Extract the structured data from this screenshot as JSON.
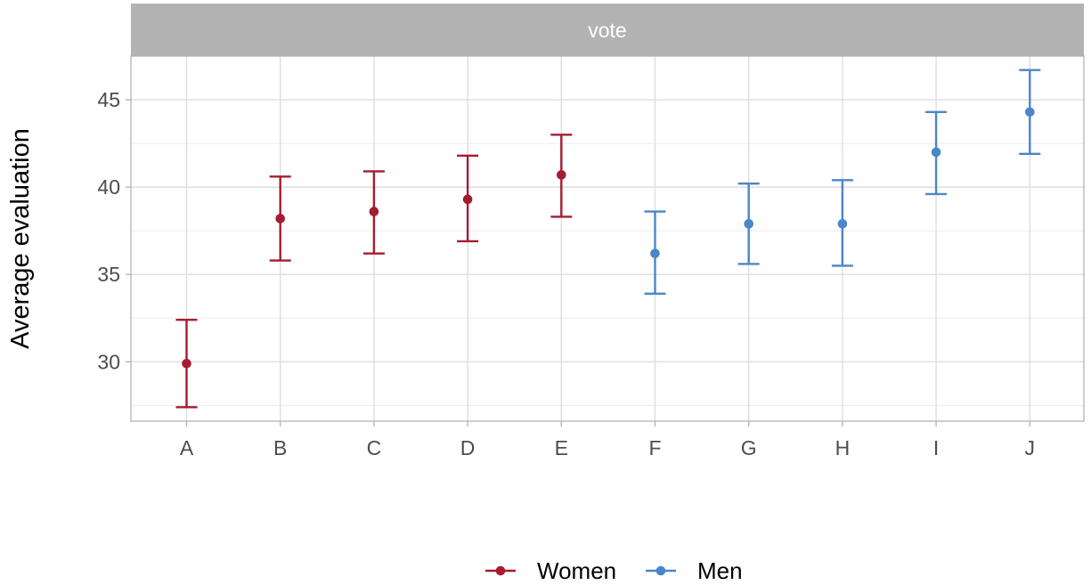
{
  "chart_data": {
    "type": "scatter",
    "subtype": "point-range with error bars",
    "facet_label": "vote",
    "ylabel": "Average evaluation",
    "xlabel": "",
    "categories": [
      "A",
      "B",
      "C",
      "D",
      "E",
      "F",
      "G",
      "H",
      "I",
      "J"
    ],
    "ylim": [
      26.6,
      47.5
    ],
    "yticks": [
      30,
      35,
      40,
      45
    ],
    "grid": true,
    "legend": "bottom",
    "series": [
      {
        "name": "Women",
        "color": "#A51C30",
        "categories": [
          "A",
          "B",
          "C",
          "D",
          "E"
        ],
        "values": [
          29.9,
          38.2,
          38.6,
          39.3,
          40.7
        ],
        "lower": [
          27.4,
          35.8,
          36.2,
          36.9,
          38.3
        ],
        "upper": [
          32.4,
          40.6,
          40.9,
          41.8,
          43.0
        ]
      },
      {
        "name": "Men",
        "color": "#4A86C8",
        "categories": [
          "F",
          "G",
          "H",
          "I",
          "J"
        ],
        "values": [
          36.2,
          37.9,
          37.9,
          42.0,
          44.3
        ],
        "lower": [
          33.9,
          35.6,
          35.5,
          39.6,
          41.9
        ],
        "upper": [
          38.6,
          40.2,
          40.4,
          44.3,
          46.7
        ]
      }
    ]
  }
}
